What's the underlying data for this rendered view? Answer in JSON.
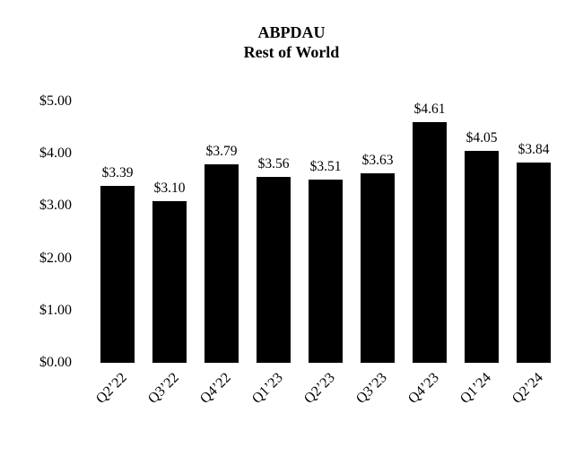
{
  "header": {
    "title_line1": "ABPDAU",
    "title_line2": "Rest of World"
  },
  "chart_data": {
    "type": "bar",
    "title": "ABPDAU Rest of World",
    "categories": [
      "Q2’22",
      "Q3’22",
      "Q4’22",
      "Q1’23",
      "Q2’23",
      "Q3’23",
      "Q4’23",
      "Q1’24",
      "Q2’24"
    ],
    "values": [
      3.39,
      3.1,
      3.79,
      3.56,
      3.51,
      3.63,
      4.61,
      4.05,
      3.84
    ],
    "value_labels": [
      "$3.39",
      "$3.10",
      "$3.79",
      "$3.56",
      "$3.51",
      "$3.63",
      "$4.61",
      "$4.05",
      "$3.84"
    ],
    "xlabel": "",
    "ylabel": "",
    "ylim": [
      0,
      5
    ],
    "ytick_labels": [
      "$0.00",
      "$1.00",
      "$2.00",
      "$3.00",
      "$4.00",
      "$5.00"
    ],
    "bar_color": "#000000",
    "background_color": "#ffffff",
    "grid": false,
    "legend": false,
    "x_label_rotation_deg": 45
  }
}
